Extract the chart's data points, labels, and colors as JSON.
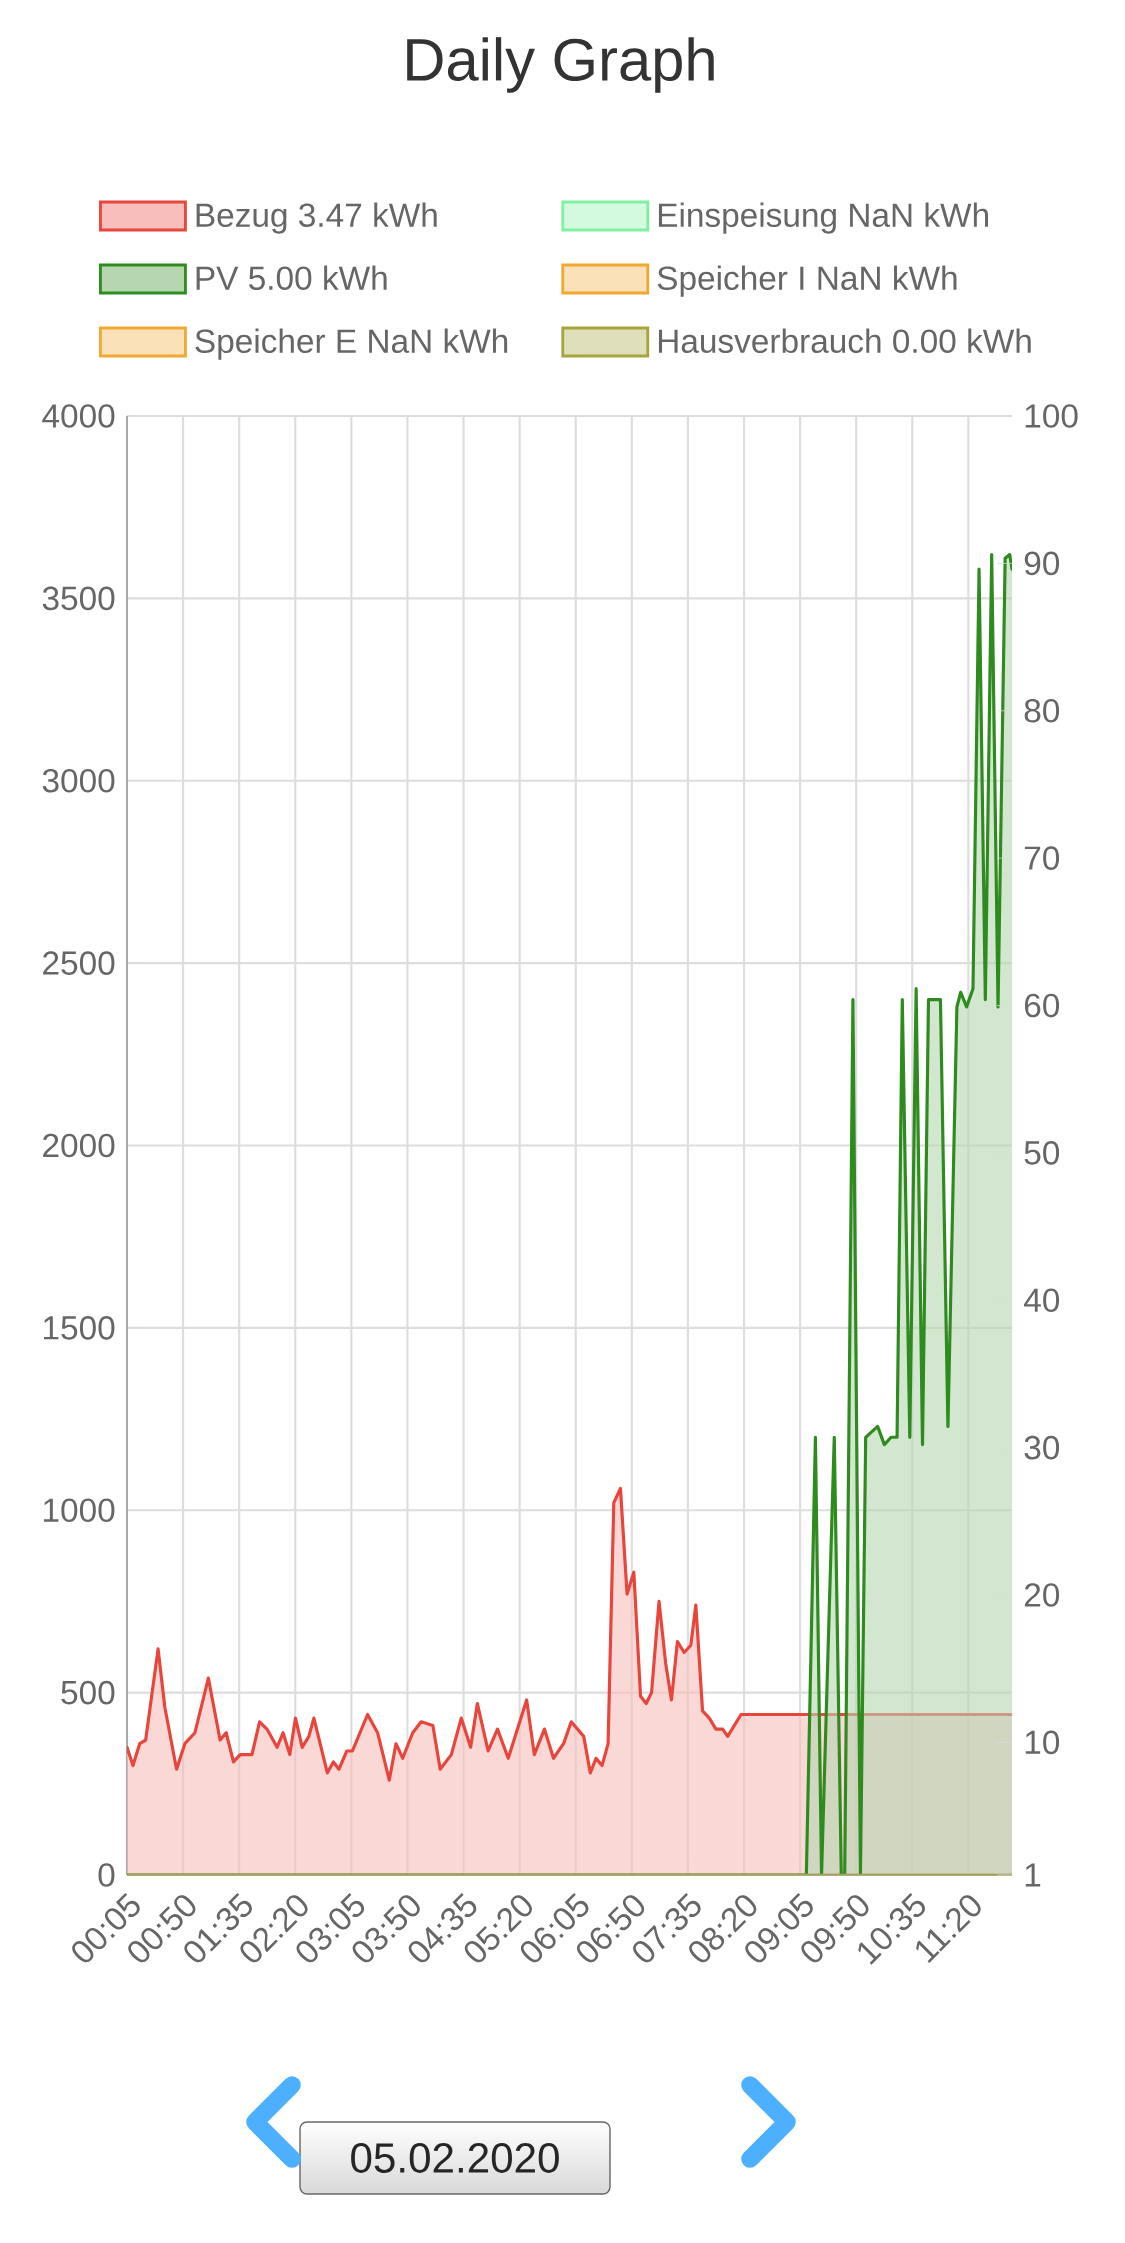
{
  "chart_data": {
    "type": "area",
    "title": "Daily Graph",
    "xlim": [
      0.0833,
      11.9167
    ],
    "xticks": [
      {
        "value": 0.0833,
        "label": "00:05"
      },
      {
        "value": 0.8333,
        "label": "00:50"
      },
      {
        "value": 1.5833,
        "label": "01:35"
      },
      {
        "value": 2.3333,
        "label": "02:20"
      },
      {
        "value": 3.0833,
        "label": "03:05"
      },
      {
        "value": 3.8333,
        "label": "03:50"
      },
      {
        "value": 4.5833,
        "label": "04:35"
      },
      {
        "value": 5.3333,
        "label": "05:20"
      },
      {
        "value": 6.0833,
        "label": "06:05"
      },
      {
        "value": 6.8333,
        "label": "06:50"
      },
      {
        "value": 7.5833,
        "label": "07:35"
      },
      {
        "value": 8.3333,
        "label": "08:20"
      },
      {
        "value": 9.0833,
        "label": "09:05"
      },
      {
        "value": 9.8333,
        "label": "09:50"
      },
      {
        "value": 10.5833,
        "label": "10:35"
      },
      {
        "value": 11.3333,
        "label": "11:20"
      }
    ],
    "ylim": [
      0,
      4000
    ],
    "yticks": [
      0,
      500,
      1000,
      1500,
      2000,
      2500,
      3000,
      3500,
      4000
    ],
    "y2lim": [
      1,
      100
    ],
    "y2ticks": [
      1,
      10,
      20,
      30,
      40,
      50,
      60,
      70,
      80,
      90,
      100
    ],
    "grid": true,
    "legend": "top",
    "series": [
      {
        "name": "Bezug 3.47 kWh",
        "color": "#e8453c",
        "x": [
          0.0833,
          0.163,
          0.253,
          0.333,
          0.499,
          0.589,
          0.746,
          0.857,
          0.992,
          1.171,
          1.328,
          1.409,
          1.507,
          1.597,
          1.754,
          1.856,
          1.955,
          2.09,
          2.17,
          2.26,
          2.336,
          2.426,
          2.515,
          2.582,
          2.762,
          2.843,
          2.918,
          3.022,
          3.098,
          3.3,
          3.434,
          3.59,
          3.68,
          3.77,
          3.904,
          4.016,
          4.173,
          4.271,
          4.42,
          4.553,
          4.678,
          4.768,
          4.912,
          5.037,
          5.181,
          5.427,
          5.53,
          5.665,
          5.786,
          5.92,
          6.023,
          6.19,
          6.278,
          6.355,
          6.435,
          6.516,
          6.592,
          6.681,
          6.77,
          6.86,
          6.95,
          7.026,
          7.097,
          7.197,
          7.286,
          7.363,
          7.443,
          7.533,
          7.622,
          7.689,
          7.779,
          7.869,
          7.958,
          8.048,
          8.115,
          8.294,
          11.9167
        ],
        "values": [
          350,
          300,
          360,
          370,
          620,
          460,
          290,
          360,
          390,
          540,
          370,
          390,
          310,
          330,
          330,
          420,
          400,
          350,
          390,
          330,
          430,
          350,
          380,
          430,
          280,
          310,
          290,
          340,
          340,
          440,
          390,
          260,
          360,
          320,
          390,
          420,
          410,
          290,
          330,
          430,
          350,
          470,
          340,
          400,
          320,
          480,
          330,
          400,
          320,
          360,
          420,
          380,
          280,
          320,
          300,
          360,
          1020,
          1060,
          770,
          830,
          490,
          470,
          500,
          750,
          580,
          480,
          640,
          610,
          630,
          740,
          450,
          430,
          400,
          400,
          380,
          440,
          440
        ]
      },
      {
        "name": "Einspeisung NaN kWh",
        "color": "#80f0a0"
      },
      {
        "name": "PV 5.00 kWh",
        "color": "#2e8b1e",
        "x": [
          0.0833,
          9.167,
          9.288,
          9.37,
          9.54,
          9.634,
          9.68,
          9.79,
          9.89,
          9.96,
          10.12,
          10.21,
          10.3,
          10.38,
          10.45,
          10.55,
          10.635,
          10.72,
          10.8,
          10.96,
          11.06,
          11.18,
          11.23,
          11.31,
          11.395,
          11.476,
          11.56,
          11.645,
          11.73,
          11.825,
          11.886,
          11.9167
        ],
        "values": [
          0,
          0,
          1200,
          0,
          1200,
          0,
          0,
          2400,
          0,
          1200,
          1230,
          1180,
          1200,
          1200,
          2400,
          1200,
          2430,
          1180,
          2400,
          2400,
          1230,
          2380,
          2420,
          2380,
          2430,
          3580,
          2400,
          3620,
          2380,
          3610,
          3620,
          3580
        ]
      },
      {
        "name": "Speicher I NaN kWh",
        "color": "#f0a830"
      },
      {
        "name": "Speicher E NaN kWh",
        "color": "#f0a830"
      },
      {
        "name": "Hausverbrauch 0.00 kWh",
        "type": "line",
        "color": "#a6a43c",
        "x": [
          0.0833,
          11.9167
        ],
        "values": [
          0,
          0
        ]
      }
    ],
    "annotations": [
      "05.02.2020"
    ]
  }
}
